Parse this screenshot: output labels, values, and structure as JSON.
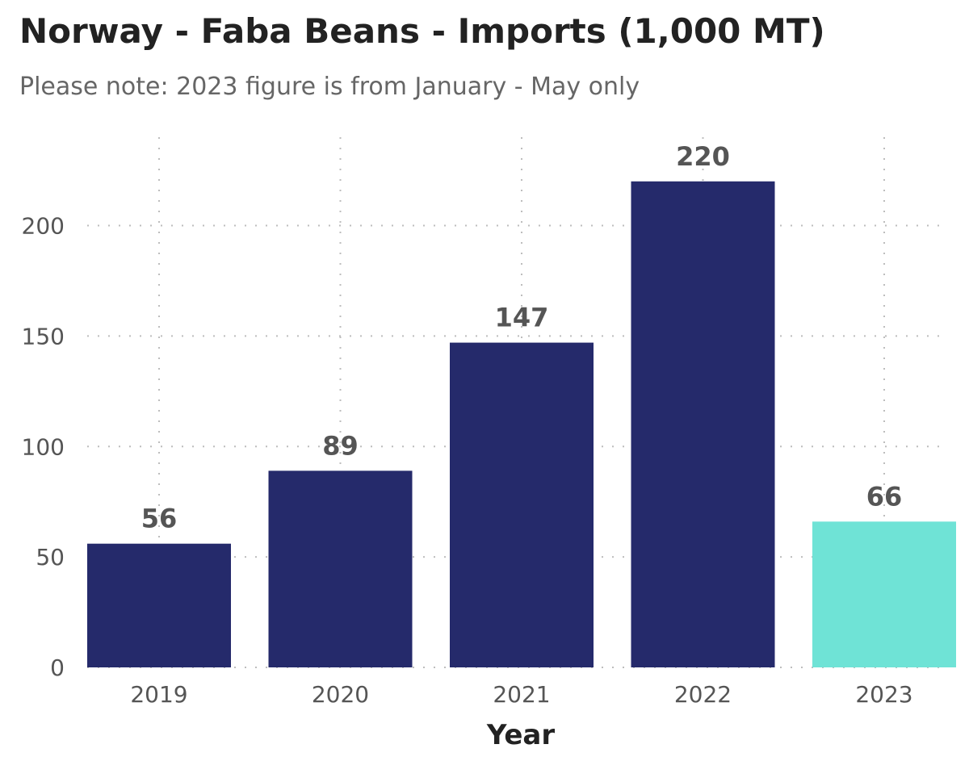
{
  "chart_data": {
    "type": "bar",
    "title": "Norway - Faba Beans - Imports (1,000 MT)",
    "subtitle": "Please note: 2023 figure is from January - May only",
    "xlabel": "Year",
    "ylabel": "",
    "categories": [
      "2019",
      "2020",
      "2021",
      "2022",
      "2023"
    ],
    "values": [
      56,
      89,
      147,
      220,
      66
    ],
    "data_labels": [
      "56",
      "89",
      "147",
      "220",
      "66"
    ],
    "bar_colors": [
      "#252a6b",
      "#252a6b",
      "#252a6b",
      "#252a6b",
      "#6fe3d6"
    ],
    "ylim": [
      0,
      240
    ],
    "yticks": [
      0,
      50,
      100,
      150,
      200
    ],
    "ytick_labels": [
      "0",
      "50",
      "100",
      "150",
      "200"
    ],
    "grid": true,
    "legend": "none"
  }
}
